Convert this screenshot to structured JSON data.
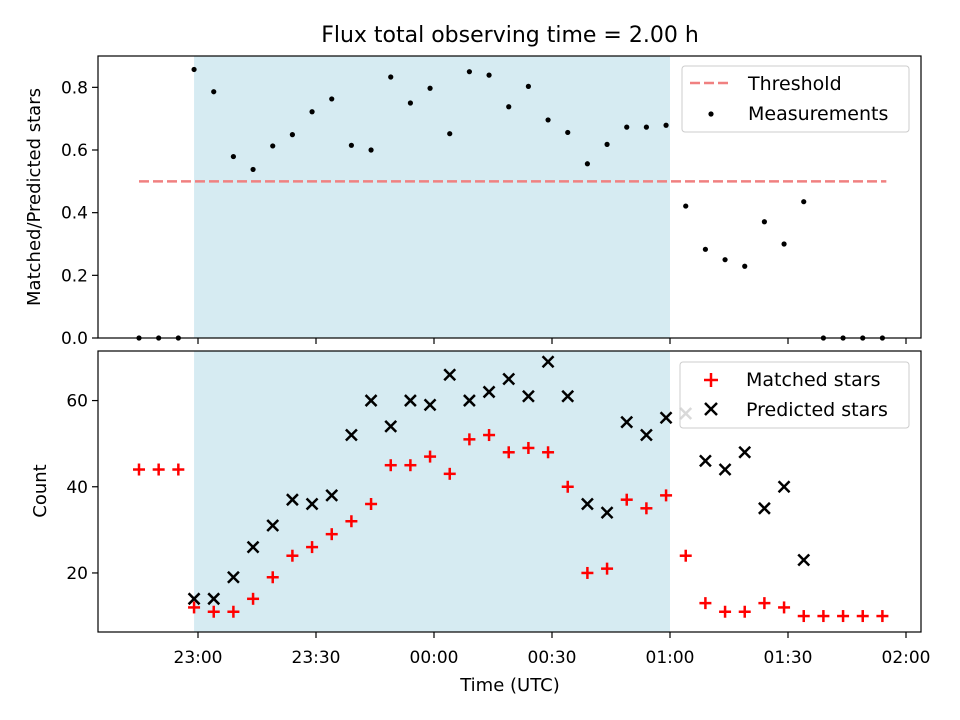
{
  "chart_data": [
    {
      "type": "scatter",
      "title": "Flux total observing time = 2.00 h",
      "xlabel": "",
      "ylabel": "Matched/Predicted stars",
      "ylim": [
        0,
        0.9
      ],
      "yticks": [
        0.0,
        0.2,
        0.4,
        0.6,
        0.8
      ],
      "ytick_labels": [
        "0.0",
        "0.2",
        "0.4",
        "0.6",
        "0.8"
      ],
      "observing_window": [
        "22:59",
        "01:00"
      ],
      "threshold": {
        "name": "Threshold",
        "value": 0.5,
        "x_range": [
          "22:45",
          "01:55"
        ],
        "color": "#f08080"
      },
      "legend": {
        "placement": "upper-right",
        "entries": [
          "Threshold",
          "Measurements"
        ]
      },
      "series": [
        {
          "name": "Measurements",
          "color": "#000000",
          "x": [
            "22:45",
            "22:50",
            "22:55",
            "22:59",
            "23:04",
            "23:09",
            "23:14",
            "23:19",
            "23:24",
            "23:29",
            "23:34",
            "23:39",
            "23:44",
            "23:49",
            "23:54",
            "23:59",
            "00:04",
            "00:09",
            "00:14",
            "00:19",
            "00:24",
            "00:29",
            "00:34",
            "00:39",
            "00:44",
            "00:49",
            "00:54",
            "00:59",
            "01:04",
            "01:09",
            "01:14",
            "01:19",
            "01:24",
            "01:29",
            "01:34",
            "01:39",
            "01:44",
            "01:49",
            "01:54"
          ],
          "y": [
            0.0,
            0.0,
            0.0,
            0.857,
            0.786,
            0.579,
            0.538,
            0.613,
            0.649,
            0.722,
            0.763,
            0.615,
            0.6,
            0.833,
            0.75,
            0.797,
            0.652,
            0.85,
            0.839,
            0.738,
            0.803,
            0.696,
            0.656,
            0.556,
            0.618,
            0.673,
            0.673,
            0.679,
            0.421,
            0.283,
            0.25,
            0.229,
            0.371,
            0.3,
            0.435,
            0.0,
            0.0,
            0.0,
            0.0
          ]
        }
      ]
    },
    {
      "type": "scatter",
      "title": "",
      "xlabel": "Time (UTC)",
      "ylabel": "Count",
      "ylim": [
        6.3,
        71.5
      ],
      "yticks": [
        20,
        40,
        60
      ],
      "ytick_labels": [
        "20",
        "40",
        "60"
      ],
      "xticks": [
        "23:00",
        "23:30",
        "00:00",
        "00:30",
        "01:00",
        "01:30",
        "02:00"
      ],
      "observing_window": [
        "22:59",
        "01:00"
      ],
      "legend": {
        "placement": "upper-right",
        "entries": [
          "Matched stars",
          "Predicted stars"
        ]
      },
      "series": [
        {
          "name": "Matched stars",
          "marker": "plus",
          "color": "#ff0000",
          "x": [
            "22:45",
            "22:50",
            "22:55",
            "22:59",
            "23:04",
            "23:09",
            "23:14",
            "23:19",
            "23:24",
            "23:29",
            "23:34",
            "23:39",
            "23:44",
            "23:49",
            "23:54",
            "23:59",
            "00:04",
            "00:09",
            "00:14",
            "00:19",
            "00:24",
            "00:29",
            "00:34",
            "00:39",
            "00:44",
            "00:49",
            "00:54",
            "00:59",
            "01:04",
            "01:09",
            "01:14",
            "01:19",
            "01:24",
            "01:29",
            "01:34",
            "01:39",
            "01:44",
            "01:49",
            "01:54"
          ],
          "y": [
            44,
            44,
            44,
            12,
            11,
            11,
            14,
            19,
            24,
            26,
            29,
            32,
            36,
            45,
            45,
            47,
            43,
            51,
            52,
            48,
            49,
            48,
            40,
            20,
            21,
            37,
            35,
            38,
            24,
            13,
            11,
            11,
            13,
            12,
            10,
            10,
            10,
            10,
            10
          ]
        },
        {
          "name": "Predicted stars",
          "marker": "x",
          "color": "#000000",
          "x": [
            "22:59",
            "23:04",
            "23:09",
            "23:14",
            "23:19",
            "23:24",
            "23:29",
            "23:34",
            "23:39",
            "23:44",
            "23:49",
            "23:54",
            "23:59",
            "00:04",
            "00:09",
            "00:14",
            "00:19",
            "00:24",
            "00:29",
            "00:34",
            "00:39",
            "00:44",
            "00:49",
            "00:54",
            "00:59",
            "01:04",
            "01:09",
            "01:14",
            "01:19",
            "01:24",
            "01:29",
            "01:34"
          ],
          "y": [
            14,
            14,
            19,
            26,
            31,
            37,
            36,
            38,
            52,
            60,
            54,
            60,
            59,
            66,
            60,
            62,
            65,
            61,
            69,
            61,
            36,
            34,
            55,
            52,
            56,
            57,
            46,
            44,
            48,
            35,
            40,
            23
          ]
        }
      ]
    }
  ]
}
